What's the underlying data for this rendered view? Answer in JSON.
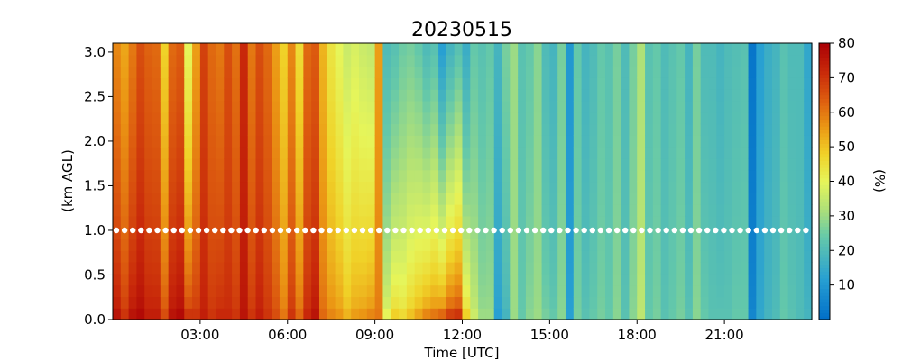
{
  "chart_data": {
    "type": "heatmap",
    "title": "20230515",
    "xlabel": "Time [UTC]",
    "ylabel": "(km AGL)",
    "colorbar_label": "(%)",
    "colormap": "jet-like",
    "clim": [
      0,
      80
    ],
    "xlim_hours": [
      0,
      24
    ],
    "ylim_km": [
      0,
      3.1
    ],
    "x_tick_labels": [
      "03:00",
      "06:00",
      "09:00",
      "12:00",
      "15:00",
      "18:00",
      "21:00"
    ],
    "x_tick_hours": [
      3,
      6,
      9,
      12,
      15,
      18,
      21
    ],
    "y_tick_labels": [
      "0.0",
      "0.5",
      "1.0",
      "1.5",
      "2.0",
      "2.5",
      "3.0"
    ],
    "y_tick_values": [
      0,
      0.5,
      1.0,
      1.5,
      2.0,
      2.5,
      3.0
    ],
    "colorbar_tick_labels": [
      "10",
      "20",
      "30",
      "40",
      "50",
      "60",
      "70",
      "80"
    ],
    "colorbar_tick_values": [
      10,
      20,
      30,
      40,
      50,
      60,
      70,
      80
    ],
    "reference_line": {
      "y_km": 1.0,
      "color": "#ffffff",
      "style": "dotted markers"
    },
    "grid": false,
    "time_columns_hours_start": 0,
    "time_step_hours": 0.333,
    "profile_top_values": [
      58,
      54,
      60,
      66,
      63,
      62,
      48,
      62,
      64,
      40,
      55,
      68,
      62,
      60,
      66,
      61,
      72,
      60,
      66,
      62,
      55,
      48,
      58,
      46,
      62,
      64,
      52,
      44,
      40,
      36,
      38,
      36,
      35,
      55,
      20,
      22,
      25,
      26,
      24,
      20,
      22,
      12,
      18,
      22,
      16,
      24,
      22,
      24,
      18,
      26,
      30,
      22,
      24,
      28,
      20,
      18,
      26,
      10,
      24,
      18,
      20,
      24,
      22,
      26,
      20,
      26,
      32,
      22,
      24,
      20,
      22,
      24,
      18,
      26,
      20,
      20,
      18,
      20,
      21,
      22,
      2,
      12,
      16,
      18,
      22,
      20,
      20,
      14
    ],
    "profile_bottom_values": [
      76,
      70,
      76,
      78,
      74,
      74,
      66,
      76,
      78,
      70,
      70,
      74,
      70,
      72,
      72,
      70,
      76,
      70,
      74,
      70,
      66,
      60,
      70,
      62,
      72,
      76,
      62,
      58,
      56,
      52,
      55,
      56,
      58,
      60,
      40,
      48,
      46,
      50,
      54,
      58,
      60,
      62,
      68,
      70,
      48,
      36,
      30,
      30,
      12,
      18,
      30,
      24,
      28,
      30,
      26,
      24,
      28,
      12,
      26,
      22,
      24,
      26,
      24,
      28,
      22,
      28,
      34,
      24,
      26,
      22,
      24,
      26,
      22,
      28,
      24,
      22,
      22,
      22,
      24,
      24,
      6,
      14,
      18,
      20,
      24,
      22,
      20,
      18
    ]
  }
}
